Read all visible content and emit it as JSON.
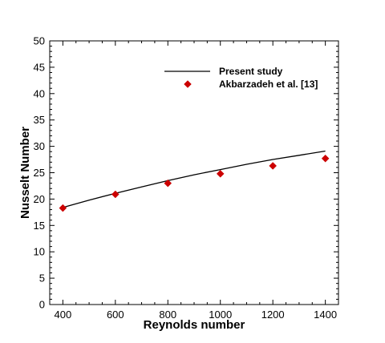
{
  "chart_data": {
    "type": "line",
    "xlabel": "Reynolds number",
    "ylabel": "Nusselt Number",
    "xlim": [
      350,
      1450
    ],
    "ylim": [
      0,
      50
    ],
    "x_ticks": [
      400,
      600,
      800,
      1000,
      1200,
      1400
    ],
    "y_ticks": [
      0,
      5,
      10,
      15,
      20,
      25,
      30,
      35,
      40,
      45,
      50
    ],
    "grid": false,
    "legend_position": "top-right",
    "series": [
      {
        "name": "Present study",
        "style": "line",
        "color": "#000000",
        "x": [
          400,
          500,
          600,
          700,
          800,
          900,
          1000,
          1100,
          1200,
          1300,
          1400
        ],
        "y": [
          18.4,
          19.8,
          21.1,
          22.3,
          23.5,
          24.6,
          25.6,
          26.6,
          27.5,
          28.3,
          29.1
        ]
      },
      {
        "name": "Akbarzadeh et al. [13]",
        "style": "marker",
        "marker": "diamond",
        "color": "#cc0000",
        "x": [
          400,
          600,
          800,
          1000,
          1200,
          1400
        ],
        "y": [
          18.3,
          20.9,
          23.0,
          24.8,
          26.3,
          27.7
        ]
      }
    ]
  }
}
